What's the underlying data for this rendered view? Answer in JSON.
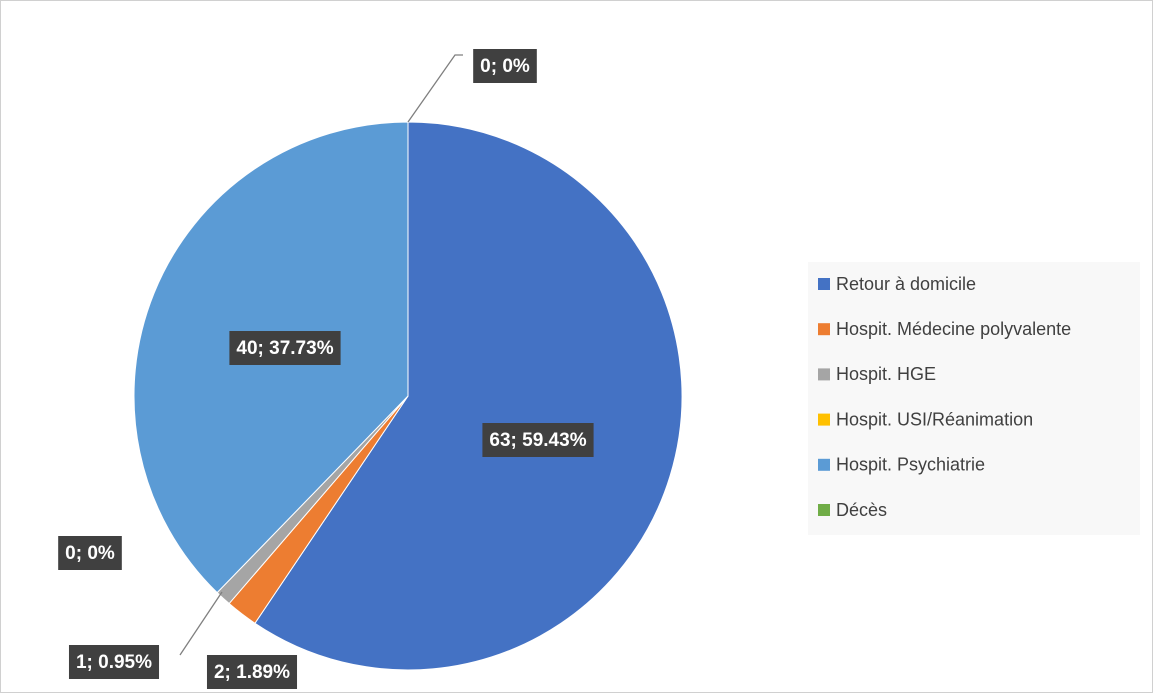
{
  "chart_data": {
    "type": "pie",
    "categories": [
      "Retour à domicile",
      "Hospit. Médecine polyvalente",
      "Hospit. HGE",
      "Hospit. USI/Réanimation",
      "Hospit. Psychiatrie",
      "Décès"
    ],
    "values": [
      63,
      2,
      1,
      0,
      40,
      0
    ],
    "value_labels": [
      "63; 59.43%",
      "2; 1.89%",
      "1; 0.95%",
      "0; 0%",
      "40; 37.73%",
      "0; 0%"
    ],
    "colors": [
      "#4472c4",
      "#ed7d31",
      "#a5a5a5",
      "#ffc000",
      "#5b9bd5",
      "#70ad47"
    ],
    "legend": "right"
  }
}
